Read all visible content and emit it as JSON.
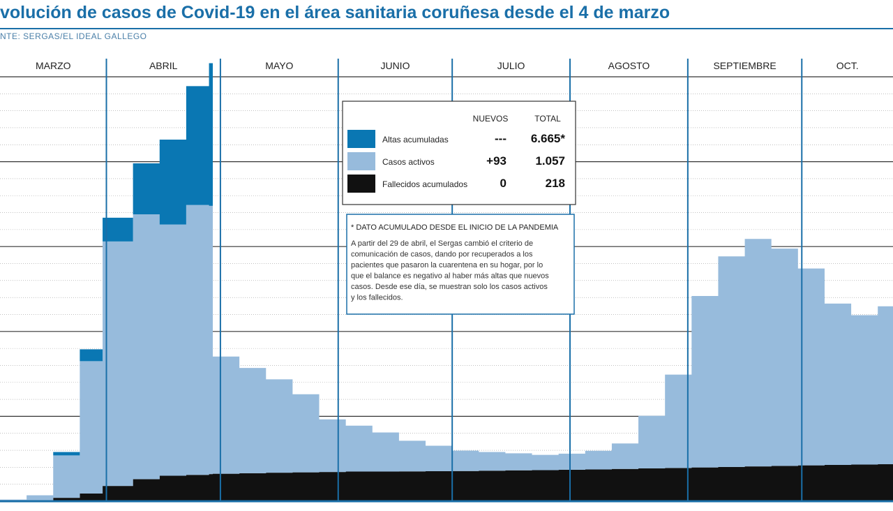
{
  "header": {
    "title": "volución de casos de Covid-19 en el área sanitaria coruñesa desde el 4 de marzo",
    "source": "NTE: SERGAS/EL IDEAL GALLEGO"
  },
  "colors": {
    "altas": "#0a77b3",
    "activos": "#97bbdc",
    "fallecidos": "#111111",
    "accent": "#1a6fa8"
  },
  "legend": {
    "col_nuevos": "NUEVOS",
    "col_total": "TOTAL",
    "rows": [
      {
        "label": "Altas acumuladas",
        "nuevos": "---",
        "total": "6.665*",
        "color": "#0a77b3"
      },
      {
        "label": "Casos activos",
        "nuevos": "+93",
        "total": "1.057",
        "color": "#97bbdc"
      },
      {
        "label": "Fallecidos acumulados",
        "nuevos": "0",
        "total": "218",
        "color": "#111111"
      }
    ]
  },
  "note": {
    "heading": "* DATO ACUMULADO DESDE EL INICIO DE LA PANDEMIA",
    "lines": [
      "A partir del 29 de abril, el Sergas cambió el criterio de",
      "comunicación de casos, dando por recuperados a los",
      "pacientes que pasaron la cuarentena en su hogar, por lo",
      "que el balance es negativo al haber más altas que nuevos",
      "casos. Desde ese día, se muestran solo los casos activos",
      "y los fallecidos."
    ]
  },
  "chart_data": {
    "type": "area",
    "stacked": true,
    "grid": true,
    "months": [
      "MARZO",
      "ABRIL",
      "MAYO",
      "JUNIO",
      "JULIO",
      "AGOSTO",
      "SEPTIEMBRE",
      "OCT."
    ],
    "ylim": [
      0,
      2500
    ],
    "x": [
      0,
      7,
      14,
      21,
      27,
      35,
      42,
      49,
      55,
      56,
      63,
      70,
      77,
      84,
      91,
      98,
      105,
      112,
      119,
      126,
      133,
      140,
      147,
      154,
      161,
      168,
      175,
      182,
      189,
      196,
      203,
      210,
      217,
      224,
      231,
      235
    ],
    "x_note": "days since 4 March",
    "series": [
      {
        "name": "Fallecidos acumulados",
        "color": "#111111",
        "values": [
          0,
          5,
          20,
          45,
          90,
          130,
          150,
          155,
          160,
          162,
          165,
          168,
          170,
          172,
          175,
          175,
          176,
          177,
          178,
          180,
          182,
          183,
          185,
          187,
          190,
          193,
          196,
          199,
          202,
          205,
          208,
          211,
          214,
          216,
          218,
          218
        ]
      },
      {
        "name": "Casos activos",
        "color": "#97bbdc",
        "values": [
          10,
          30,
          250,
          780,
          1440,
          1560,
          1480,
          1590,
          1580,
          690,
          620,
          550,
          460,
          310,
          270,
          230,
          180,
          150,
          120,
          110,
          100,
          90,
          95,
          110,
          150,
          310,
          550,
          1010,
          1240,
          1340,
          1280,
          1160,
          950,
          880,
          930,
          1057
        ]
      },
      {
        "name": "Altas acumuladas",
        "color": "#0a77b3",
        "values": [
          0,
          0,
          20,
          70,
          140,
          300,
          500,
          700,
          840,
          0,
          0,
          0,
          0,
          0,
          0,
          0,
          0,
          0,
          0,
          0,
          0,
          0,
          0,
          0,
          0,
          0,
          0,
          0,
          0,
          0,
          0,
          0,
          0,
          0,
          0,
          0
        ]
      }
    ]
  }
}
